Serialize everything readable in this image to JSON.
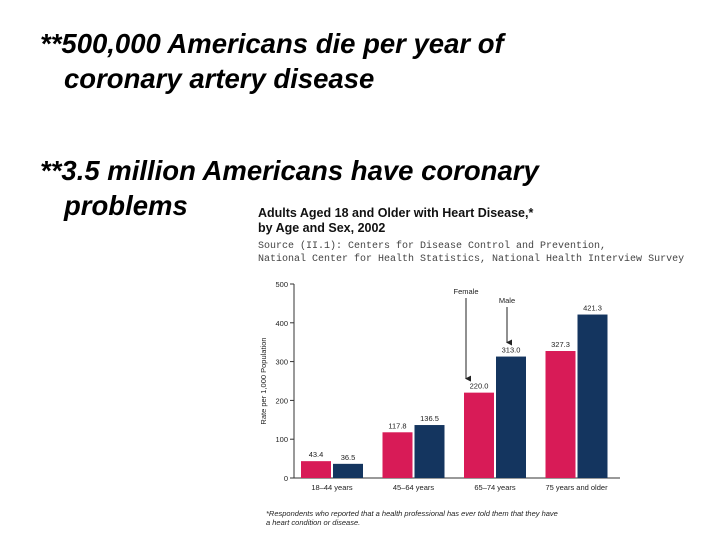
{
  "slide": {
    "bullet1_line1": "**500,000 Americans die per year of",
    "bullet1_line2": "coronary artery disease",
    "bullet2_line1": "**3.5 million Americans have coronary",
    "bullet2_line2": "problems"
  },
  "chart_data": {
    "type": "bar",
    "title_line1": "Adults Aged 18 and Older with Heart Disease,*",
    "title_line2": "by Age and Sex, 2002",
    "source_line1": "Source (II.1): Centers for Disease Control and Prevention,",
    "source_line2": "National Center for Health Statistics, National Health Interview Survey",
    "ylabel": "Rate per 1,000 Population",
    "ylim": [
      0,
      500
    ],
    "yticks": [
      "0",
      "100",
      "200",
      "300",
      "400",
      "500"
    ],
    "categories": [
      "18–44 years",
      "45–64 years",
      "65–74 years",
      "75 years and older"
    ],
    "series": [
      {
        "name": "Female",
        "color": "#d81b57",
        "values": [
          43.4,
          117.8,
          220.0,
          327.3
        ],
        "labels": [
          "43.4",
          "117.8",
          "220.0",
          "327.3"
        ]
      },
      {
        "name": "Male",
        "color": "#14355f",
        "values": [
          36.5,
          136.5,
          313.0,
          421.3
        ],
        "labels": [
          "36.5",
          "136.5",
          "313.0",
          "421.3"
        ]
      }
    ],
    "annotations": {
      "female": "Female",
      "male": "Male"
    },
    "footnote_line1": "*Respondents who reported that a health professional has ever told them that they have",
    "footnote_line2": "a heart condition or disease."
  }
}
